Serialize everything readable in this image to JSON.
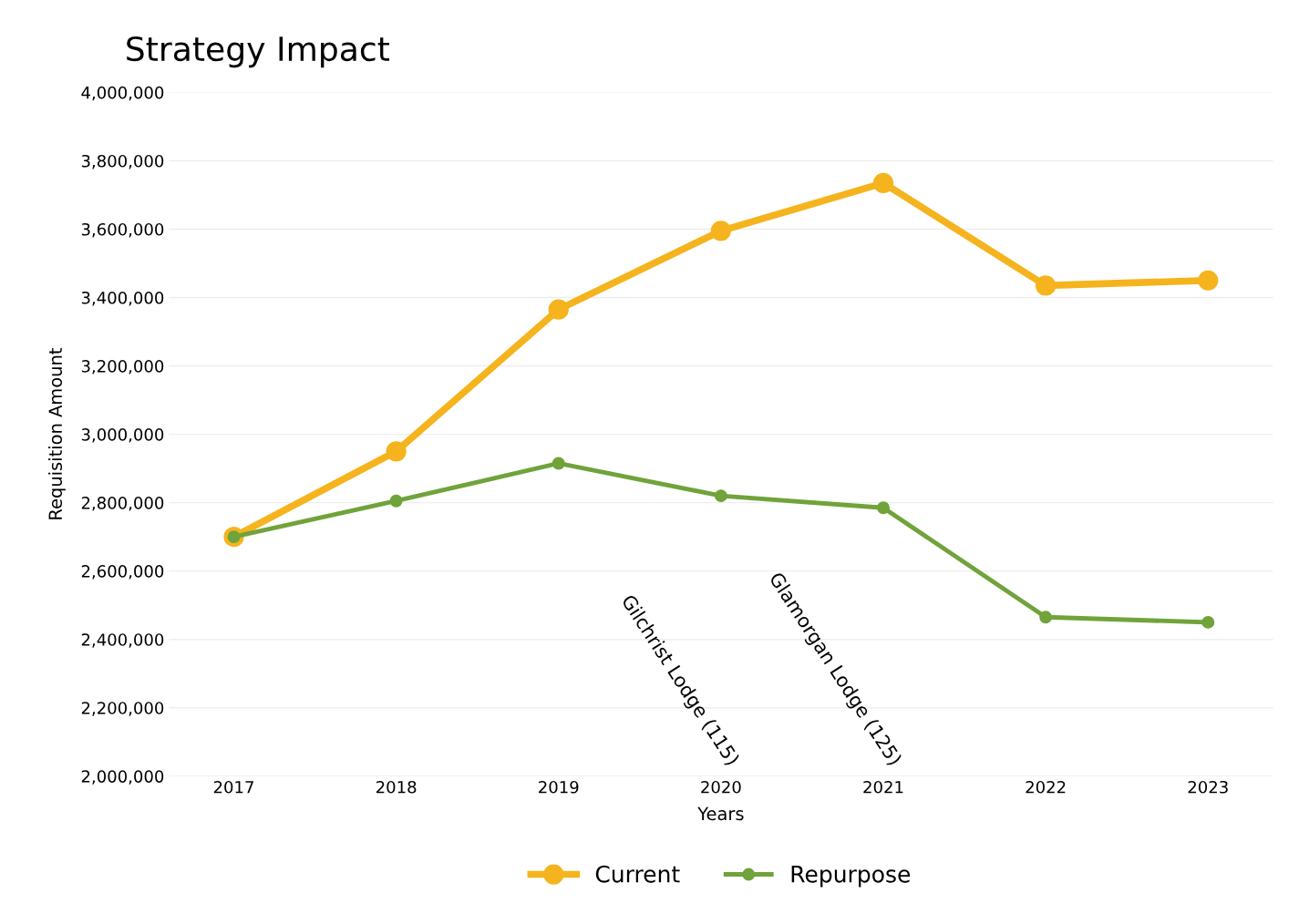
{
  "chart_data": {
    "type": "line",
    "title": "Strategy Impact",
    "xlabel": "Years",
    "ylabel": "Requisition Amount",
    "categories": [
      "2017",
      "2018",
      "2019",
      "2020",
      "2021",
      "2022",
      "2023"
    ],
    "series": [
      {
        "name": "Current",
        "color": "#f5b41e",
        "values": [
          2700000,
          2950000,
          3365000,
          3595000,
          3735000,
          3435000,
          3450000
        ]
      },
      {
        "name": "Repurpose",
        "color": "#70a33a",
        "values": [
          2700000,
          2805000,
          2915000,
          2820000,
          2785000,
          2465000,
          2450000
        ]
      }
    ],
    "ylim": [
      2000000,
      4000000
    ],
    "yticks": [
      {
        "value": 2000000,
        "label": "2,000,000"
      },
      {
        "value": 2200000,
        "label": "2,200,000"
      },
      {
        "value": 2400000,
        "label": "2,400,000"
      },
      {
        "value": 2600000,
        "label": "2,600,000"
      },
      {
        "value": 2800000,
        "label": "2,800,000"
      },
      {
        "value": 3000000,
        "label": "3,000,000"
      },
      {
        "value": 3200000,
        "label": "3,200,000"
      },
      {
        "value": 3400000,
        "label": "3,400,000"
      },
      {
        "value": 3600000,
        "label": "3,600,000"
      },
      {
        "value": 3800000,
        "label": "3,800,000"
      },
      {
        "value": 4000000,
        "label": "4,000,000"
      }
    ],
    "annotations": [
      "Gilchrist Lodge (115)",
      "Glamorgan Lodge (125)"
    ],
    "grid": "y",
    "legend": "bottom",
    "marker": "circle",
    "line_style": "solid"
  }
}
